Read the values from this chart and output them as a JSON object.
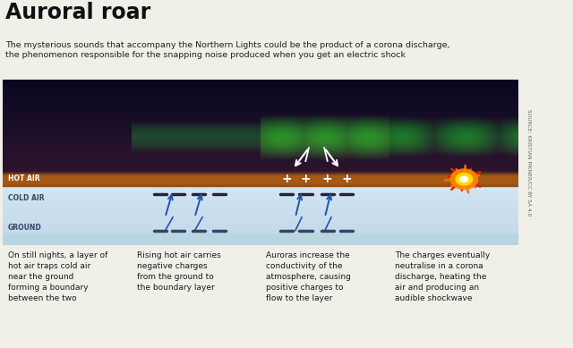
{
  "title": "Auroral roar",
  "subtitle": "The mysterious sounds that accompany the Northern Lights could be the product of a corona discharge,\nthe phenomenon responsible for the snapping noise produced when you get an electric shock",
  "source_text": "SOURCE: KRISTIAN PIKNER/CC BY SA 4.0",
  "panel_captions": [
    "On still nights, a layer of\nhot air traps cold air\nnear the ground\nforming a boundary\nbetween the two",
    "Rising hot air carries\nnegative charges\nfrom the ground to\nthe boundary layer",
    "Auroras increase the\nconductivity of the\natmosphere, causing\npositive charges to\nflow to the layer",
    "The charges eventually\nneutralise in a corona\ndischarge, heating the\nair and producing an\naudible shockwave"
  ],
  "bg_color": "#f0efe8",
  "n_panels": 4,
  "fig_width": 6.4,
  "fig_height": 3.89
}
